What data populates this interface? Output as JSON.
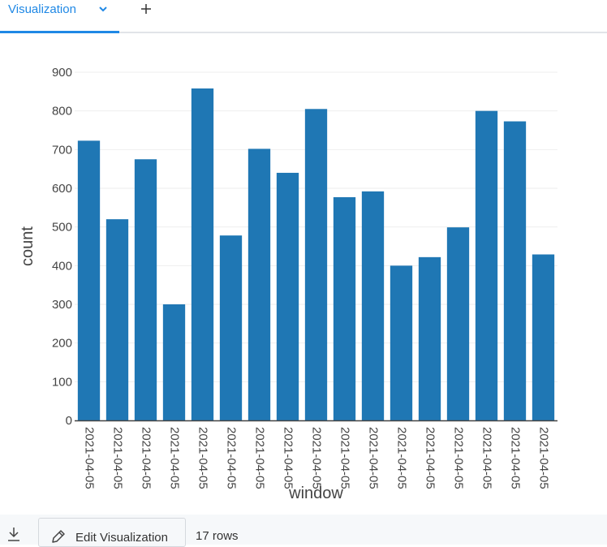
{
  "tabs": {
    "active_label": "Visualization",
    "chevron_icon": "chevron-down-icon",
    "add_icon": "plus-icon"
  },
  "footer": {
    "download_icon": "download-icon",
    "edit_button_label": "Edit Visualization",
    "edit_icon": "pencil-icon",
    "row_count": "17 rows"
  },
  "colors": {
    "accent": "#1f88e5",
    "bar": "#1f77b4"
  },
  "chart_data": {
    "type": "bar",
    "xlabel": "window",
    "ylabel": "count",
    "ylim": [
      0,
      900
    ],
    "yticks": [
      0,
      100,
      200,
      300,
      400,
      500,
      600,
      700,
      800,
      900
    ],
    "grid": true,
    "categories": [
      "2021-04-05",
      "2021-04-05",
      "2021-04-05",
      "2021-04-05",
      "2021-04-05",
      "2021-04-05",
      "2021-04-05",
      "2021-04-05",
      "2021-04-05",
      "2021-04-05",
      "2021-04-05",
      "2021-04-05",
      "2021-04-05",
      "2021-04-05",
      "2021-04-05",
      "2021-04-05",
      "2021-04-05"
    ],
    "values": [
      723,
      520,
      675,
      300,
      858,
      478,
      702,
      640,
      805,
      577,
      592,
      400,
      422,
      499,
      800,
      773,
      429
    ]
  }
}
